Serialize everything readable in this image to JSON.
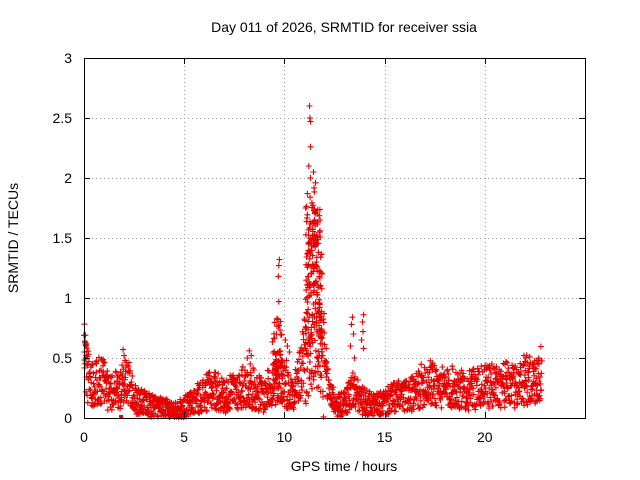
{
  "chart_data": {
    "type": "scatter",
    "title": "Day 011 of 2026, SRMTID for receiver ssia",
    "xlabel": "GPS time / hours",
    "ylabel": "SRMTID / TECUs",
    "xlim": [
      0,
      25
    ],
    "ylim": [
      0,
      3
    ],
    "xticks": [
      0,
      5,
      10,
      15,
      20
    ],
    "xtick_labels": [
      "0",
      "5",
      "10",
      "15",
      "20"
    ],
    "yticks": [
      0,
      0.5,
      1,
      1.5,
      2,
      2.5,
      3
    ],
    "ytick_labels": [
      "0",
      "0.5",
      "1",
      "1.5",
      "2",
      "2.5",
      "3"
    ],
    "grid": true,
    "marker": "plus",
    "color": "#e60000",
    "profile_points": [
      [
        0.0,
        0.58
      ],
      [
        0.2,
        0.35
      ],
      [
        0.5,
        0.28
      ],
      [
        0.8,
        0.34
      ],
      [
        1.2,
        0.22
      ],
      [
        1.6,
        0.24
      ],
      [
        1.9,
        0.22
      ],
      [
        2.1,
        0.35
      ],
      [
        2.5,
        0.16
      ],
      [
        3.0,
        0.12
      ],
      [
        3.5,
        0.1
      ],
      [
        4.0,
        0.08
      ],
      [
        4.5,
        0.06
      ],
      [
        5.0,
        0.09
      ],
      [
        5.5,
        0.14
      ],
      [
        6.0,
        0.2
      ],
      [
        6.5,
        0.24
      ],
      [
        7.0,
        0.18
      ],
      [
        7.5,
        0.22
      ],
      [
        8.0,
        0.26
      ],
      [
        8.5,
        0.24
      ],
      [
        9.0,
        0.18
      ],
      [
        9.4,
        0.3
      ],
      [
        9.8,
        0.36
      ],
      [
        10.3,
        0.2
      ],
      [
        10.8,
        0.35
      ],
      [
        11.2,
        0.8
      ],
      [
        11.5,
        1.0
      ],
      [
        11.8,
        0.6
      ],
      [
        12.2,
        0.25
      ],
      [
        12.6,
        0.1
      ],
      [
        13.0,
        0.12
      ],
      [
        13.4,
        0.24
      ],
      [
        13.8,
        0.15
      ],
      [
        14.5,
        0.1
      ],
      [
        15.0,
        0.13
      ],
      [
        15.5,
        0.17
      ],
      [
        16.0,
        0.18
      ],
      [
        16.5,
        0.2
      ],
      [
        17.0,
        0.3
      ],
      [
        17.5,
        0.28
      ],
      [
        18.0,
        0.24
      ],
      [
        18.5,
        0.26
      ],
      [
        19.0,
        0.22
      ],
      [
        19.5,
        0.24
      ],
      [
        20.0,
        0.26
      ],
      [
        20.5,
        0.27
      ],
      [
        21.0,
        0.28
      ],
      [
        21.5,
        0.26
      ],
      [
        22.0,
        0.32
      ],
      [
        22.4,
        0.3
      ],
      [
        22.8,
        0.36
      ]
    ],
    "spikes": [
      [
        9.75,
        1.32
      ],
      [
        9.72,
        1.27
      ],
      [
        9.7,
        1.18
      ],
      [
        9.72,
        0.97
      ],
      [
        9.68,
        0.82
      ],
      [
        9.6,
        0.7
      ],
      [
        11.25,
        2.6
      ],
      [
        11.27,
        2.5
      ],
      [
        11.3,
        2.47
      ],
      [
        11.3,
        2.26
      ],
      [
        11.22,
        2.1
      ],
      [
        11.3,
        2.0
      ],
      [
        11.15,
        1.87
      ],
      [
        11.28,
        1.84
      ],
      [
        11.45,
        2.05
      ],
      [
        11.55,
        1.96
      ],
      [
        11.5,
        1.65
      ],
      [
        11.4,
        1.52
      ],
      [
        11.6,
        1.45
      ],
      [
        11.7,
        1.38
      ],
      [
        11.6,
        1.3
      ],
      [
        11.35,
        1.2
      ],
      [
        11.5,
        1.12
      ],
      [
        11.2,
        1.18
      ],
      [
        11.45,
        0.95
      ],
      [
        11.8,
        1.1
      ],
      [
        11.75,
        0.92
      ],
      [
        11.6,
        0.8
      ],
      [
        11.9,
        0.72
      ],
      [
        11.3,
        0.62
      ],
      [
        11.1,
        0.88
      ],
      [
        11.05,
        0.58
      ],
      [
        10.95,
        0.7
      ],
      [
        12.0,
        0.46
      ],
      [
        11.85,
        0.5
      ],
      [
        12.1,
        0.4
      ],
      [
        13.4,
        0.84
      ],
      [
        13.35,
        0.78
      ],
      [
        13.45,
        0.7
      ],
      [
        13.3,
        0.6
      ],
      [
        13.5,
        0.5
      ],
      [
        13.95,
        0.86
      ],
      [
        13.9,
        0.8
      ],
      [
        13.92,
        0.72
      ],
      [
        13.85,
        0.65
      ],
      [
        13.95,
        0.58
      ],
      [
        0.05,
        0.64
      ],
      [
        0.1,
        0.6
      ],
      [
        0.02,
        0.55
      ],
      [
        0.08,
        0.5
      ],
      [
        0.15,
        0.45
      ],
      [
        1.95,
        0.57
      ],
      [
        2.0,
        0.52
      ],
      [
        2.05,
        0.48
      ],
      [
        1.9,
        0.44
      ],
      [
        8.25,
        0.56
      ],
      [
        8.35,
        0.52
      ],
      [
        8.15,
        0.5
      ],
      [
        8.3,
        0.45
      ],
      [
        10.05,
        0.65
      ],
      [
        10.15,
        0.6
      ],
      [
        10.25,
        0.55
      ],
      [
        10.1,
        0.48
      ],
      [
        21.95,
        0.52
      ],
      [
        22.05,
        0.5
      ],
      [
        22.0,
        0.47
      ],
      [
        17.3,
        0.42
      ],
      [
        17.4,
        0.4
      ],
      [
        22.6,
        0.48
      ],
      [
        22.7,
        0.45
      ]
    ],
    "outlier": [
      1.85,
      0.0
    ]
  }
}
